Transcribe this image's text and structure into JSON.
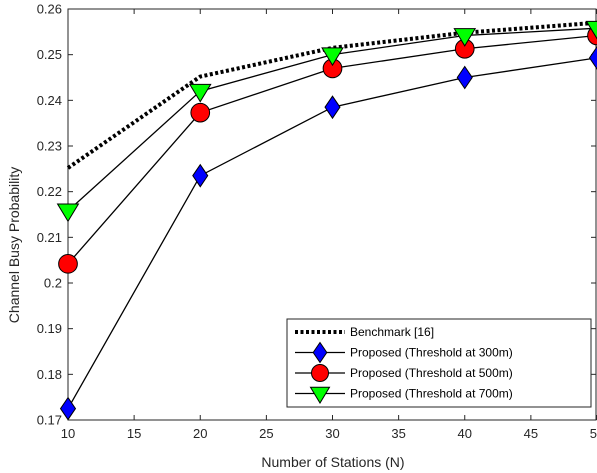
{
  "chart_data": {
    "type": "line",
    "xlabel": "Number of Stations (N)",
    "ylabel": "Channel Busy Probability",
    "xlim": [
      10,
      50
    ],
    "ylim": [
      0.17,
      0.26
    ],
    "xticks": [
      10,
      15,
      20,
      25,
      30,
      35,
      40,
      45,
      50
    ],
    "yticks": [
      0.17,
      0.18,
      0.19,
      0.2,
      0.21,
      0.22,
      0.23,
      0.24,
      0.25,
      0.26
    ],
    "x_tick_labels": [
      "10",
      "15",
      "20",
      "25",
      "30",
      "35",
      "40",
      "45",
      "50"
    ],
    "y_tick_labels": [
      "0.17",
      "0.18",
      "0.19",
      "0.2",
      "0.21",
      "0.22",
      "0.23",
      "0.24",
      "0.25",
      "0.26"
    ],
    "grid": false,
    "legend_position": "bottom-right",
    "x": [
      10,
      20,
      30,
      40,
      50
    ],
    "series": [
      {
        "name": "Benchmark [16]",
        "values": [
          0.2252,
          0.2452,
          0.2515,
          0.2548,
          0.257
        ],
        "color": "#000000",
        "line_style": "dotted-thick",
        "marker": "none"
      },
      {
        "name": "Proposed (Threshold at 300m)",
        "values": [
          0.1725,
          0.2235,
          0.2385,
          0.245,
          0.2493
        ],
        "color": "#0000ff",
        "line_style": "solid",
        "marker": "diamond"
      },
      {
        "name": "Proposed (Threshold at 500m)",
        "values": [
          0.2042,
          0.2373,
          0.247,
          0.2513,
          0.2542
        ],
        "color": "#ff0000",
        "line_style": "solid",
        "marker": "circle"
      },
      {
        "name": "Proposed (Threshold at 700m)",
        "values": [
          0.2158,
          0.242,
          0.25,
          0.2542,
          0.2558
        ],
        "color": "#00ff00",
        "line_style": "solid",
        "marker": "triangle-down"
      }
    ]
  }
}
